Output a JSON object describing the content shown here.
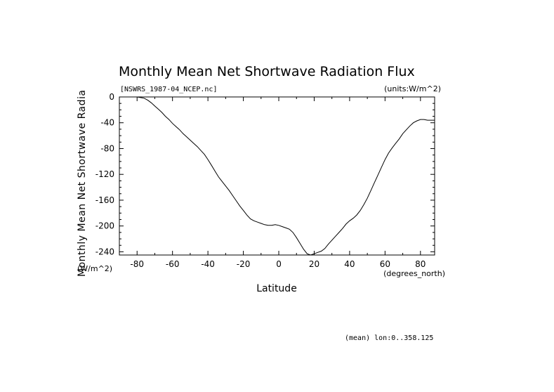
{
  "chart_data": {
    "type": "line",
    "title": "Monthly Mean Net Shortwave Radiation Flux",
    "file_label": "[NSWRS_1987-04_NCEP.nc]",
    "units_label": "(units:W/m^2)",
    "ylabel": "Monthly Mean Net Shortwave Radia",
    "y_units": "(W/m^2)",
    "xlabel": "Latitude",
    "x_units": "(degrees_north)",
    "footnote": "(mean) lon:0..358.125",
    "xlim": [
      -90,
      88
    ],
    "ylim": [
      -245,
      0
    ],
    "x_ticks": [
      -80,
      -60,
      -40,
      -20,
      0,
      20,
      40,
      60,
      80
    ],
    "x_tick_labels": [
      "-80",
      "-60",
      "-40",
      "-20",
      "0",
      "20",
      "40",
      "60",
      "80"
    ],
    "y_ticks": [
      0,
      -40,
      -80,
      -120,
      -160,
      -200,
      -240
    ],
    "y_tick_labels": [
      "0",
      "-40",
      "-80",
      "-120",
      "-160",
      "-200",
      "-240"
    ],
    "grid": false,
    "series": [
      {
        "x": [
          -80,
          -78,
          -76,
          -74,
          -72,
          -70,
          -68,
          -66,
          -64,
          -62,
          -60,
          -58,
          -56,
          -54,
          -52,
          -50,
          -48,
          -46,
          -44,
          -42,
          -40,
          -38,
          -36,
          -34,
          -32,
          -30,
          -28,
          -26,
          -24,
          -22,
          -20,
          -18,
          -16,
          -14,
          -12,
          -10,
          -8,
          -6,
          -4,
          -2,
          0,
          2,
          4,
          6,
          8,
          10,
          12,
          14,
          16,
          18,
          20,
          22,
          24,
          26,
          28,
          30,
          32,
          34,
          36,
          38,
          40,
          42,
          44,
          46,
          48,
          50,
          52,
          54,
          56,
          58,
          60,
          62,
          64,
          66,
          68,
          70,
          72,
          74,
          76,
          78,
          80,
          82,
          84,
          86,
          88
        ],
        "y": [
          0,
          -1,
          -2,
          -5,
          -9,
          -14,
          -19,
          -24,
          -30,
          -35,
          -41,
          -46,
          -51,
          -57,
          -62,
          -67,
          -72,
          -77,
          -83,
          -89,
          -97,
          -106,
          -115,
          -124,
          -131,
          -138,
          -145,
          -153,
          -161,
          -169,
          -176,
          -183,
          -189,
          -192,
          -194,
          -196,
          -198,
          -199,
          -199,
          -198,
          -199,
          -201,
          -203,
          -205,
          -210,
          -218,
          -227,
          -236,
          -243,
          -245,
          -243,
          -241,
          -239,
          -235,
          -228,
          -222,
          -216,
          -210,
          -204,
          -197,
          -192,
          -188,
          -183,
          -176,
          -167,
          -157,
          -145,
          -133,
          -121,
          -109,
          -97,
          -87,
          -79,
          -72,
          -65,
          -57,
          -51,
          -45,
          -40,
          -37,
          -35,
          -35,
          -36,
          -36,
          -36
        ]
      }
    ]
  }
}
